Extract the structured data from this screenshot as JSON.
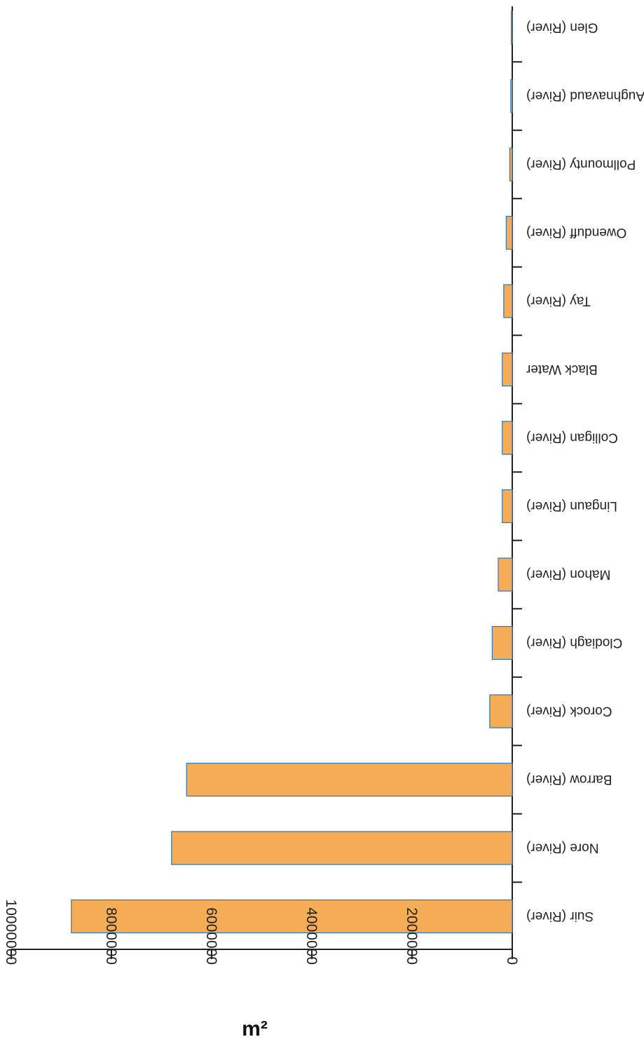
{
  "chart_data": {
    "type": "bar",
    "orientation": "horizontal",
    "rendered_rotation": "180deg",
    "categories": [
      "Suir (River)",
      "Nore (River)",
      "Barrow (River)",
      "Corock (River)",
      "Clodiagh (River)",
      "Mahon (River)",
      "Lingaun (River)",
      "Colligan (River)",
      "Black Water",
      "Tay (River)",
      "Owenduff (River)",
      "Pollmounty (River)",
      "Aughnavaud (River)",
      "Glen (River)"
    ],
    "values": [
      8800000,
      6800000,
      6500000,
      450000,
      400000,
      280000,
      200000,
      200000,
      200000,
      170000,
      120000,
      50000,
      30000,
      20000
    ],
    "ylabel": "m²",
    "xlabel": "",
    "ylim": [
      0,
      10000000
    ],
    "ticks": [
      "0",
      "2000000",
      "4000000",
      "6000000",
      "8000000",
      "10000000"
    ],
    "tick_values": [
      0,
      2000000,
      4000000,
      6000000,
      8000000,
      10000000
    ],
    "grid": false,
    "legend": "none"
  },
  "colors": {
    "bar_fill": "#F7AC56",
    "bar_stroke": "#2C78B5",
    "axis": "#222222"
  }
}
